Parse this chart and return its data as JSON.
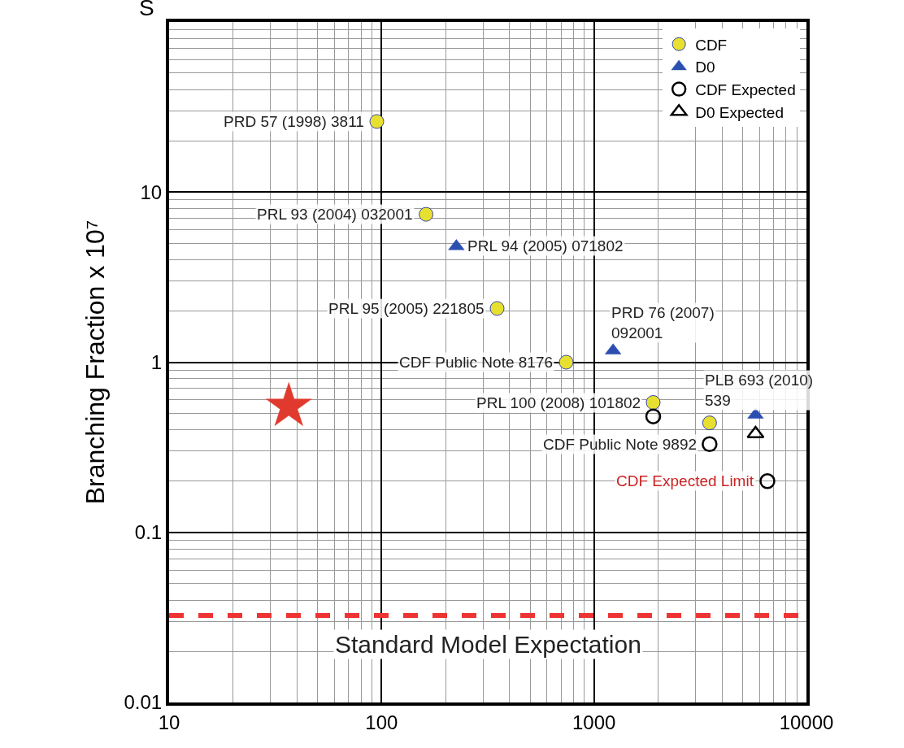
{
  "chart_data": {
    "type": "scatter",
    "title": "S",
    "ylabel": "Branching Fraction x 10⁷",
    "log": "xy",
    "xlim": [
      10,
      10000
    ],
    "ylim": [
      0.01,
      100
    ],
    "xticks": [
      10,
      100,
      1000,
      10000
    ],
    "yticks": [
      0.01,
      0.1,
      1,
      10,
      {
        "value": 100,
        "label": null
      }
    ],
    "grid": true,
    "legend": "top right",
    "series": [
      {
        "name": "CDF",
        "color": "#e8e030",
        "marker": "circle",
        "x": [
          95,
          162,
          350,
          740,
          1900,
          3500
        ],
        "values": [
          26,
          7.4,
          2.07,
          1.0,
          0.58,
          0.44
        ]
      },
      {
        "name": "D0",
        "color": "#2b4fb0",
        "marker": "triangle",
        "x": [
          225,
          1230,
          5760
        ],
        "values": [
          4.8,
          1.17,
          0.49
        ]
      },
      {
        "name": "CDF Expected",
        "color": "#000000",
        "marker": "circle",
        "x": [
          1900,
          3500,
          6550
        ],
        "values": [
          0.48,
          0.33,
          0.2
        ]
      },
      {
        "name": "D0 Expected",
        "color": "#000000",
        "marker": "triangle",
        "x": [
          5760
        ],
        "values": [
          0.38
        ]
      },
      {
        "color": "#e03a2e",
        "marker": "star",
        "x": [
          36.6
        ],
        "values": [
          0.55
        ]
      }
    ],
    "ref_lines": [
      {
        "axis": "y",
        "value": 0.0325,
        "label": "Standard Model Expectation",
        "color": "#ee3333",
        "line_style": "dashed"
      }
    ],
    "annotations": [
      {
        "text": "PRD 57 (1998) 3811",
        "x": 95,
        "y": 26
      },
      {
        "text": "PRL 93 (2004) 032001",
        "x": 162,
        "y": 7.4
      },
      {
        "text": "PRL 94 (2005) 071802",
        "x": 225,
        "y": 4.8
      },
      {
        "text": "PRL 95 (2005) 221805",
        "x": 350,
        "y": 2.07
      },
      {
        "text": "PRD 76 (2007)\n092001",
        "x": 1230,
        "y": 1.17
      },
      {
        "text": "CDF Public Note 8176",
        "x": 740,
        "y": 1.0
      },
      {
        "text": "PLB 693 (2010)\n539",
        "x": 5760,
        "y": 0.49
      },
      {
        "text": "PRL 100 (2008) 101802",
        "x": 1900,
        "y": 0.58
      },
      {
        "text": "CDF Public Note 9892",
        "x": 3500,
        "y": 0.33
      },
      {
        "text": "CDF Expected Limit",
        "x": 6550,
        "y": 0.2
      }
    ]
  }
}
